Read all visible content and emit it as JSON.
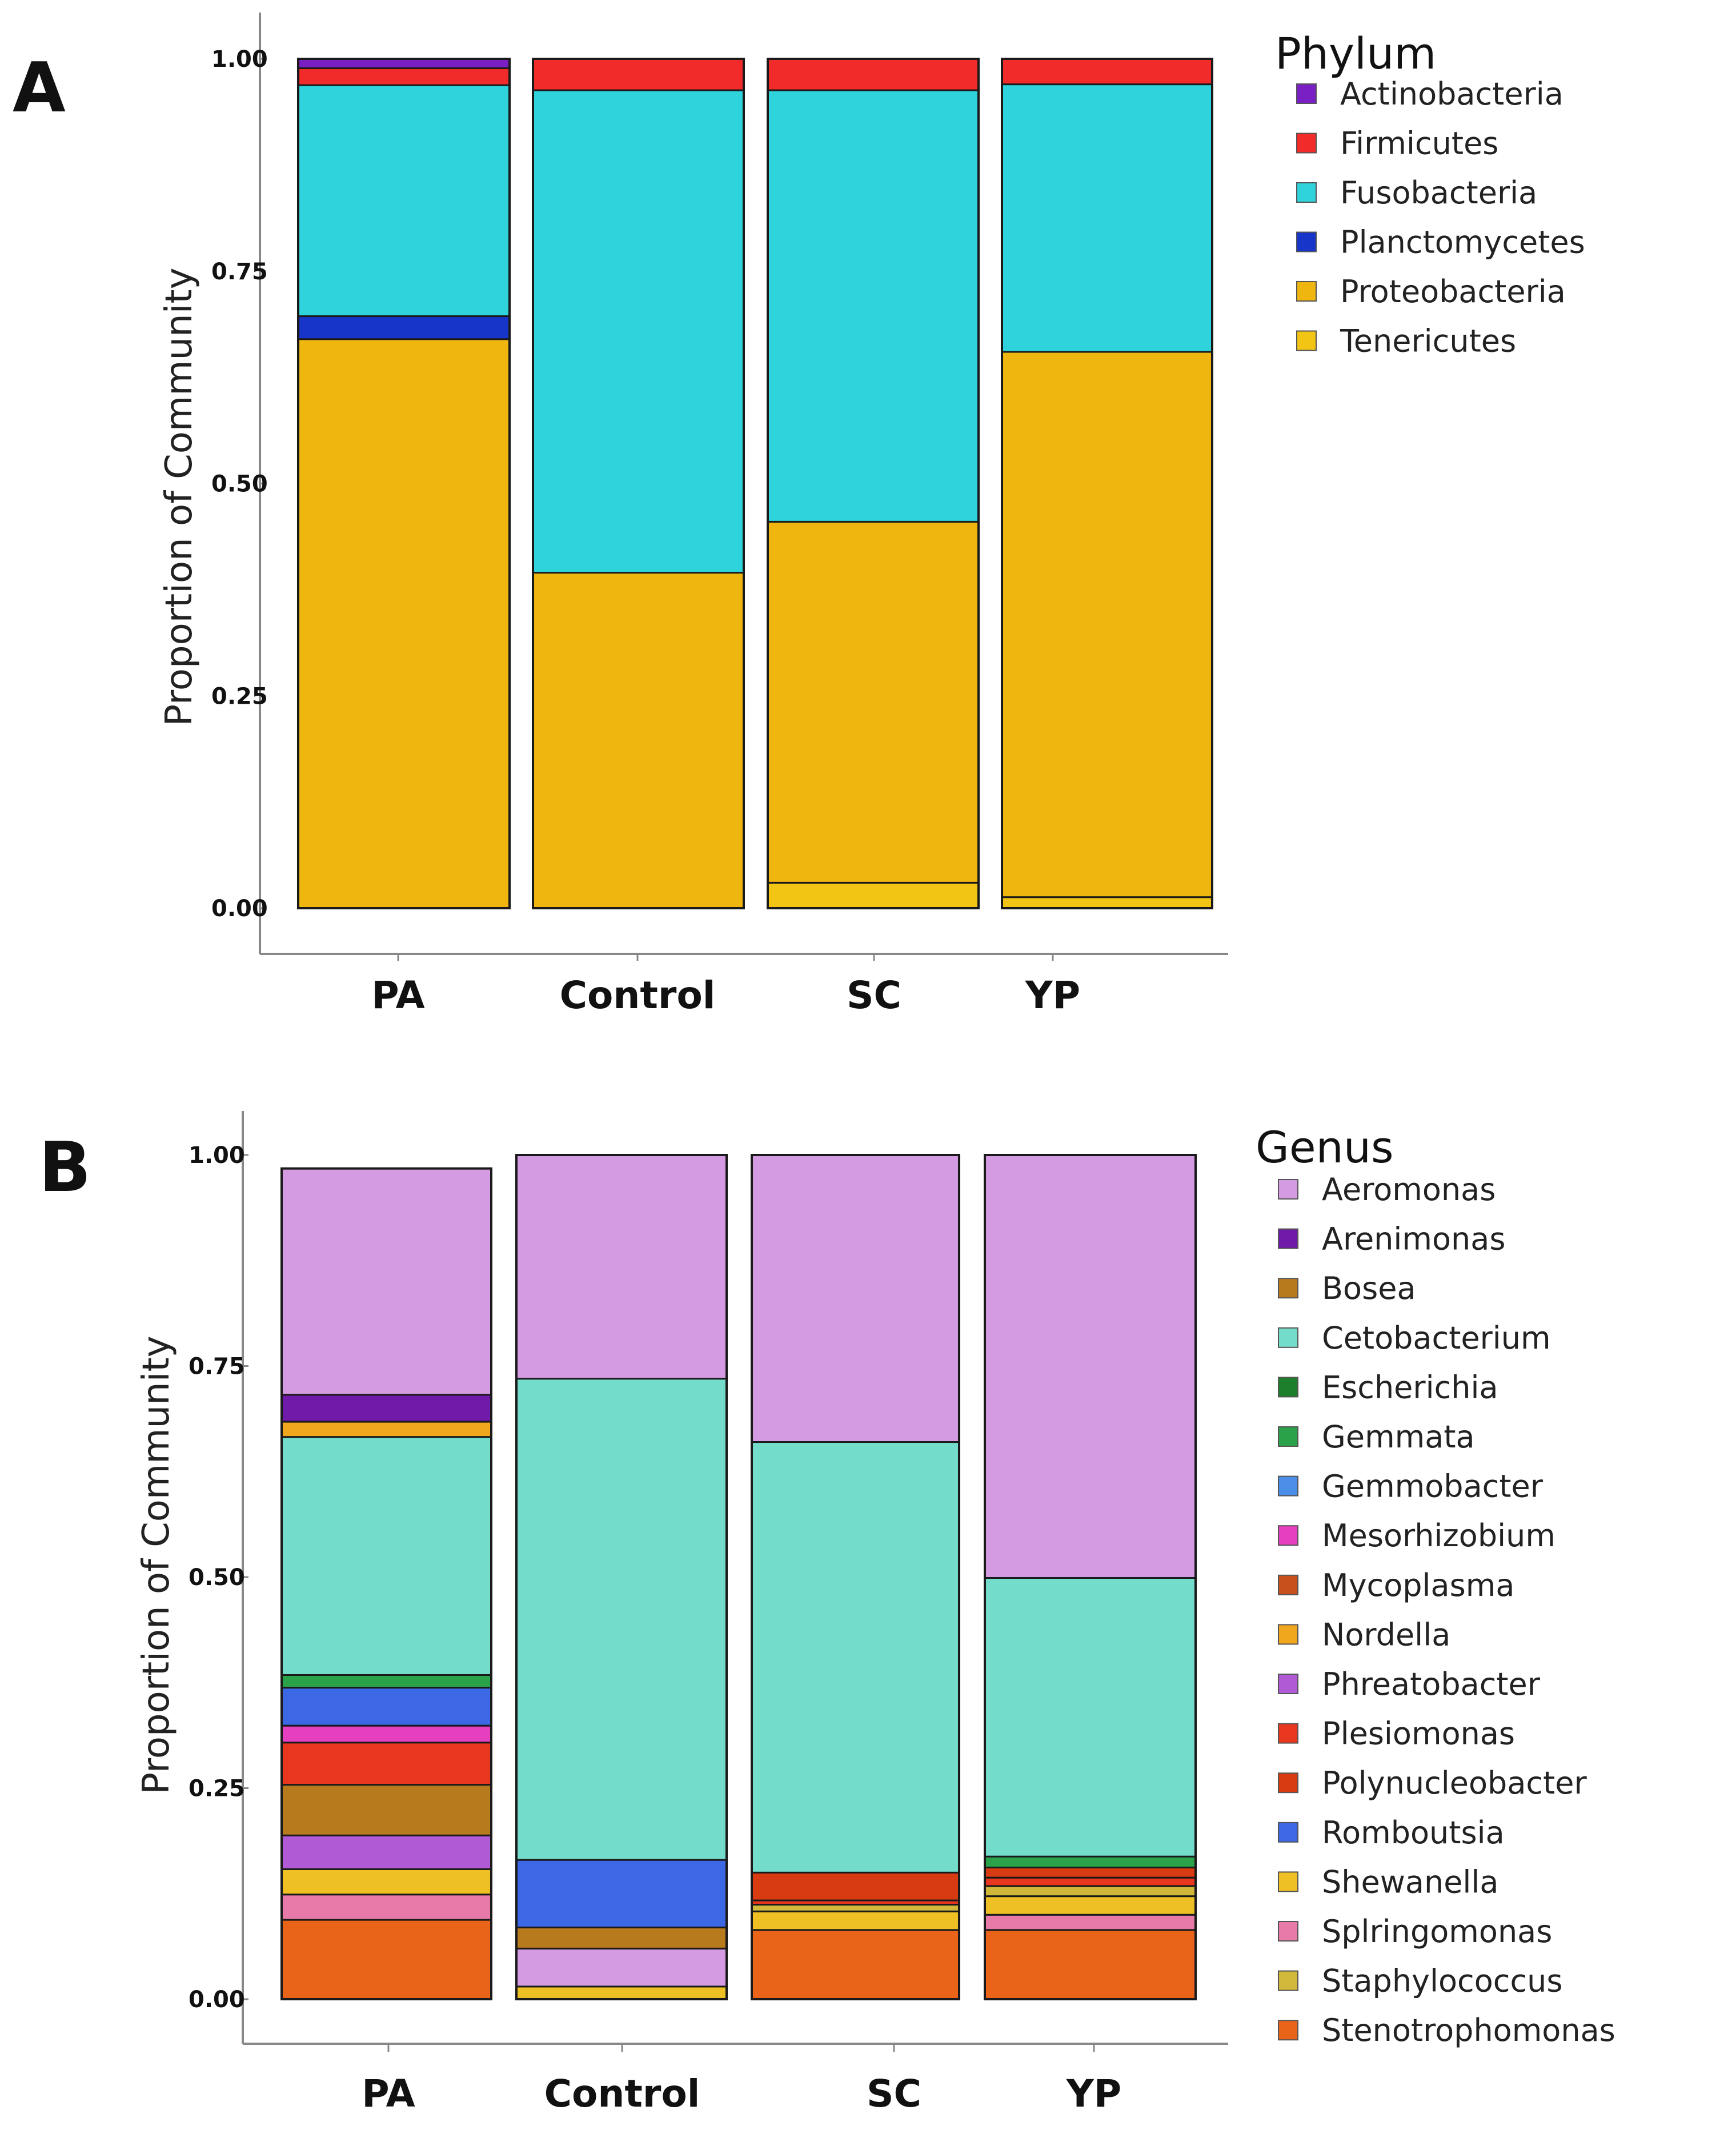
{
  "panels": [
    {
      "label": "A"
    },
    {
      "label": "B"
    }
  ],
  "chart_data": [
    {
      "type": "bar",
      "stacked": true,
      "title": "",
      "xlabel": "",
      "ylabel": "Proportion of Community",
      "ylim": [
        0,
        1
      ],
      "yticks": [
        "0.00",
        "0.25",
        "0.50",
        "0.75",
        "1.00"
      ],
      "categories": [
        "PA",
        "Control",
        "SC",
        "YP"
      ],
      "legend_title": "Phylum",
      "legend_placement": "top-right",
      "legend": [
        {
          "name": "Actinobacteria",
          "color": "#7a1fc4"
        },
        {
          "name": "Firmicutes",
          "color": "#f12a2a"
        },
        {
          "name": "Fusobacteria",
          "color": "#2fd3dc"
        },
        {
          "name": "Planctomycetes",
          "color": "#1736c9"
        },
        {
          "name": "Proteobacteria",
          "color": "#f0b610"
        },
        {
          "name": "Tenericutes",
          "color": "#f2c414"
        }
      ],
      "series": [
        {
          "name": "Tenericutes",
          "color": "#f2c414",
          "values": [
            0.0,
            0.0,
            0.03,
            0.013
          ]
        },
        {
          "name": "Proteobacteria",
          "color": "#f0b610",
          "values": [
            0.67,
            0.395,
            0.425,
            0.642
          ]
        },
        {
          "name": "Planctomycetes",
          "color": "#1736c9",
          "values": [
            0.027,
            0.0,
            0.0,
            0.0
          ]
        },
        {
          "name": "Fusobacteria",
          "color": "#2fd3dc",
          "values": [
            0.272,
            0.568,
            0.508,
            0.315
          ]
        },
        {
          "name": "Firmicutes",
          "color": "#f12a2a",
          "values": [
            0.02,
            0.037,
            0.037,
            0.03
          ]
        },
        {
          "name": "Actinobacteria",
          "color": "#7a1fc4",
          "values": [
            0.011,
            0.0,
            0.0,
            0.0
          ]
        }
      ]
    },
    {
      "type": "bar",
      "stacked": true,
      "title": "",
      "xlabel": "",
      "ylabel": "Proportion of Community",
      "ylim": [
        0,
        1
      ],
      "yticks": [
        "0.00",
        "0.25",
        "0.50",
        "0.75",
        "1.00"
      ],
      "categories": [
        "PA",
        "Control",
        "SC",
        "YP"
      ],
      "legend_title": "Genus",
      "legend_placement": "top-right",
      "legend": [
        {
          "name": "Aeromonas",
          "color": "#d49be3"
        },
        {
          "name": "Arenimonas",
          "color": "#6f1aa8"
        },
        {
          "name": "Bosea",
          "color": "#b77b1d"
        },
        {
          "name": "Cetobacterium",
          "color": "#74dcca"
        },
        {
          "name": "Escherichia",
          "color": "#1d7f2b"
        },
        {
          "name": "Gemmata",
          "color": "#2aa24a"
        },
        {
          "name": "Gemmobacter",
          "color": "#4a8ee8"
        },
        {
          "name": "Mesorhizobium",
          "color": "#e63fbf"
        },
        {
          "name": "Mycoplasma",
          "color": "#c8501c"
        },
        {
          "name": "Nordella",
          "color": "#f0a71e"
        },
        {
          "name": "Phreatobacter",
          "color": "#b05ad6"
        },
        {
          "name": "Plesiomonas",
          "color": "#e8361f"
        },
        {
          "name": "Polynucleobacter",
          "color": "#d83a12"
        },
        {
          "name": "Romboutsia",
          "color": "#3c68e6"
        },
        {
          "name": "Shewanella",
          "color": "#eec023"
        },
        {
          "name": "Splringomonas",
          "color": "#e77aa8"
        },
        {
          "name": "Staphylococcus",
          "color": "#d1b83a"
        },
        {
          "name": "Stenotrophomonas",
          "color": "#e96418"
        }
      ],
      "series": [
        {
          "name": "Stenotrophomonas",
          "color": "#e96418",
          "values": [
            0.094,
            0.0,
            0.082,
            0.082
          ]
        },
        {
          "name": "Splringomonas",
          "color": "#e77aa8",
          "values": [
            0.03,
            0.0,
            0.0,
            0.018
          ]
        },
        {
          "name": "Shewanella",
          "color": "#eec023",
          "values": [
            0.03,
            0.015,
            0.022,
            0.022
          ]
        },
        {
          "name": "Staphylococcus",
          "color": "#d1b83a",
          "values": [
            0.0,
            0.0,
            0.008,
            0.012
          ]
        },
        {
          "name": "Phreatobacter",
          "color": "#b05ad6",
          "values": [
            0.04,
            0.0,
            0.0,
            0.0
          ]
        },
        {
          "name": "Aeromonas",
          "color": "#d49be3",
          "values": [
            0.0,
            0.045,
            0.0,
            0.0
          ]
        },
        {
          "name": "Bosea",
          "color": "#b77b1d",
          "values": [
            0.06,
            0.025,
            0.0,
            0.0
          ]
        },
        {
          "name": "Plesiomonas",
          "color": "#e8361f",
          "values": [
            0.05,
            0.0,
            0.005,
            0.01
          ]
        },
        {
          "name": "Polynucleobacter",
          "color": "#d83a12",
          "values": [
            0.0,
            0.0,
            0.033,
            0.012
          ]
        },
        {
          "name": "Mesorhizobium",
          "color": "#e63fbf",
          "values": [
            0.02,
            0.0,
            0.0,
            0.0
          ]
        },
        {
          "name": "Romboutsia",
          "color": "#3c68e6",
          "values": [
            0.045,
            0.08,
            0.0,
            0.0
          ]
        },
        {
          "name": "Gemmata",
          "color": "#2aa24a",
          "values": [
            0.015,
            0.0,
            0.0,
            0.013
          ]
        },
        {
          "name": "Cetobacterium",
          "color": "#74dcca",
          "values": [
            0.282,
            0.57,
            0.51,
            0.33
          ]
        },
        {
          "name": "Nordella",
          "color": "#f0a71e",
          "values": [
            0.018,
            0.0,
            0.0,
            0.0
          ]
        },
        {
          "name": "Arenimonas",
          "color": "#6f1aa8",
          "values": [
            0.032,
            0.0,
            0.0,
            0.0
          ]
        },
        {
          "name": "Aeromonas",
          "color": "#d49be3",
          "values": [
            0.268,
            0.265,
            0.34,
            0.501
          ]
        }
      ]
    }
  ]
}
